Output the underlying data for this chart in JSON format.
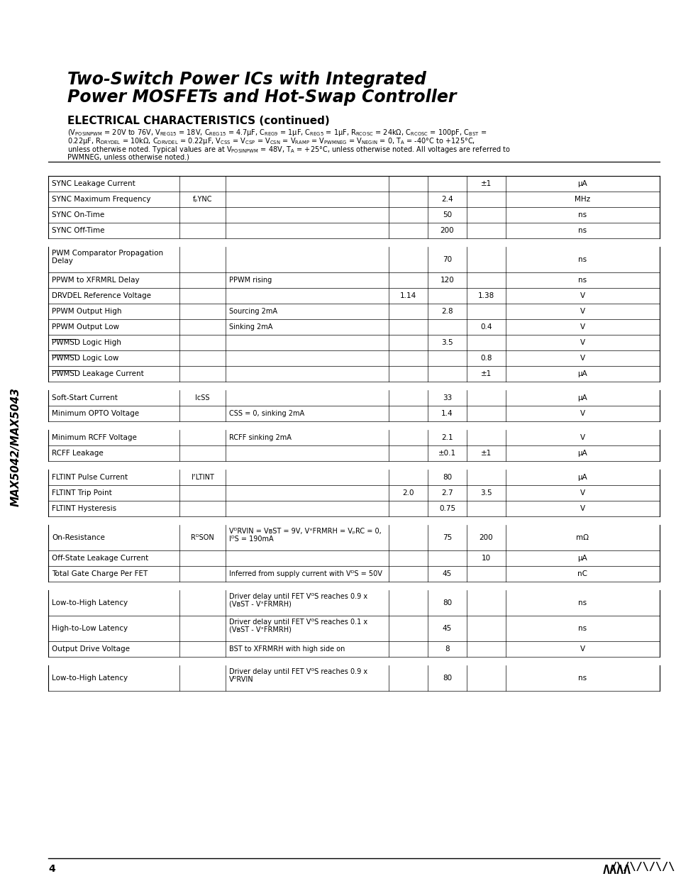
{
  "title_line1": "Two-Switch Power ICs with Integrated",
  "title_line2": "Power MOSFETs and Hot-Swap Controller",
  "section_title": "ELECTRICAL CHARACTERISTICS (continued)",
  "conditions_text": "(VₚOSINPWM = 20V to 76V, VᴾEG15 = 18V, CᴾEG15 = 4.7μF, CᴾEG9 = 1μF, CᴾEG5 = 1μF, RᴾCOSC = 24kΩ, CᴾCOSC = 100pF, CʙST = 0.22μF, RᴰᴾVDEL = 10kΩ, CᴰᴾVDEL = 0.22μF, VᴄSS = VᴄSP = VᴄSN = VᴾAMP = VₚWMNEG = VɴEGIN = 0, Tᴀ = -40°C to +125°C, unless otherwise noted. Typical values are at VₚOSINPWM = 48V, Tᴀ = +25°C, unless otherwise noted. All voltages are referred to PWMNEG, unless otherwise noted.)",
  "side_text": "MAX5042/MAX5043",
  "page_num": "4",
  "logo_text": "/\\/\\/\\/\\/\\",
  "bg_color": "#ffffff",
  "table_rows": [
    {
      "param": "SYNC Leakage Current",
      "symbol": "",
      "conditions": "",
      "min": "",
      "typ": "",
      "max": "±1",
      "units": "μA",
      "group": "sync",
      "shade": false
    },
    {
      "param": "SYNC Maximum Frequency",
      "symbol": "fₚYNC",
      "conditions": "",
      "min": "",
      "typ": "2.4",
      "max": "",
      "units": "MHz",
      "group": "sync",
      "shade": false
    },
    {
      "param": "SYNC On-Time",
      "symbol": "",
      "conditions": "",
      "min": "",
      "typ": "50",
      "max": "",
      "units": "ns",
      "group": "sync",
      "shade": false
    },
    {
      "param": "SYNC Off-Time",
      "symbol": "",
      "conditions": "",
      "min": "",
      "typ": "200",
      "max": "",
      "units": "ns",
      "group": "sync",
      "shade": false
    },
    {
      "param": "",
      "symbol": "",
      "conditions": "",
      "min": "",
      "typ": "",
      "max": "",
      "units": "",
      "group": "spacer",
      "shade": false
    },
    {
      "param": "PWM Comparator Propagation\nDelay",
      "symbol": "",
      "conditions": "",
      "min": "",
      "typ": "70",
      "max": "",
      "units": "ns",
      "group": "pwm",
      "shade": false
    },
    {
      "param": "PPWM to XFRMRL Delay",
      "symbol": "",
      "conditions": "PPWM rising",
      "min": "",
      "typ": "120",
      "max": "",
      "units": "ns",
      "group": "pwm",
      "shade": false
    },
    {
      "param": "DRVDEL Reference Voltage",
      "symbol": "",
      "conditions": "",
      "min": "1.14",
      "typ": "",
      "max": "1.38",
      "units": "V",
      "group": "pwm",
      "shade": false
    },
    {
      "param": "PPWM Output High",
      "symbol": "",
      "conditions": "Sourcing 2mA",
      "min": "",
      "typ": "2.8",
      "max": "",
      "units": "V",
      "group": "pwm",
      "shade": false
    },
    {
      "param": "PPWM Output Low",
      "symbol": "",
      "conditions": "Sinking 2mA",
      "min": "",
      "typ": "",
      "max": "0.4",
      "units": "V",
      "group": "pwm",
      "shade": false
    },
    {
      "param": "PWMSD Logic High",
      "symbol": "",
      "conditions": "",
      "min": "",
      "typ": "3.5",
      "max": "",
      "units": "V",
      "group": "pwm",
      "shade": false,
      "overline": "PWMSD"
    },
    {
      "param": "PWMSD Logic Low",
      "symbol": "",
      "conditions": "",
      "min": "",
      "typ": "",
      "max": "0.8",
      "units": "V",
      "group": "pwm",
      "shade": false,
      "overline": "PWMSD"
    },
    {
      "param": "PWMSD Leakage Current",
      "symbol": "",
      "conditions": "",
      "min": "",
      "typ": "",
      "max": "±1",
      "units": "μA",
      "group": "pwm",
      "shade": false,
      "overline": "PWMSD"
    },
    {
      "param": "",
      "symbol": "",
      "conditions": "",
      "min": "",
      "typ": "",
      "max": "",
      "units": "",
      "group": "spacer2",
      "shade": false
    },
    {
      "param": "Soft-Start Current",
      "symbol": "IᴄSS",
      "conditions": "",
      "min": "",
      "typ": "33",
      "max": "",
      "units": "μA",
      "group": "ss",
      "shade": false
    },
    {
      "param": "Minimum OPTO Voltage",
      "symbol": "",
      "conditions": "CSS = 0, sinking 2mA",
      "min": "",
      "typ": "1.4",
      "max": "",
      "units": "V",
      "group": "ss",
      "shade": false
    },
    {
      "param": "",
      "symbol": "",
      "conditions": "",
      "min": "",
      "typ": "",
      "max": "",
      "units": "",
      "group": "spacer3",
      "shade": false
    },
    {
      "param": "Minimum RCFF Voltage",
      "symbol": "",
      "conditions": "RCFF sinking 2mA",
      "min": "",
      "typ": "2.1",
      "max": "",
      "units": "V",
      "group": "rcff",
      "shade": false
    },
    {
      "param": "RCFF Leakage",
      "symbol": "",
      "conditions": "",
      "min": "",
      "typ": "±0.1",
      "max": "±1",
      "units": "μA",
      "group": "rcff",
      "shade": false
    },
    {
      "param": "",
      "symbol": "",
      "conditions": "",
      "min": "",
      "typ": "",
      "max": "",
      "units": "",
      "group": "spacer4",
      "shade": false
    },
    {
      "param": "FLTINT Pulse Current",
      "symbol": "IᶠLTINT",
      "conditions": "",
      "min": "",
      "typ": "80",
      "max": "",
      "units": "μA",
      "group": "flt",
      "shade": false
    },
    {
      "param": "FLTINT Trip Point",
      "symbol": "",
      "conditions": "",
      "min": "2.0",
      "typ": "2.7",
      "max": "3.5",
      "units": "V",
      "group": "flt",
      "shade": false
    },
    {
      "param": "FLTINT Hysteresis",
      "symbol": "",
      "conditions": "",
      "min": "",
      "typ": "0.75",
      "max": "",
      "units": "V",
      "group": "flt",
      "shade": false
    },
    {
      "param": "",
      "symbol": "",
      "conditions": "",
      "min": "",
      "typ": "",
      "max": "",
      "units": "",
      "group": "spacer5",
      "shade": false
    },
    {
      "param": "On-Resistance",
      "symbol": "RᴰSON",
      "conditions": "VᴰRVIN = VʙST = 9V, VˣFRMRH = VₚRC = 0,\nIᴰS = 190mA",
      "min": "",
      "typ": "75",
      "max": "200",
      "units": "mΩ",
      "group": "mosfet",
      "shade": false
    },
    {
      "param": "Off-State Leakage Current",
      "symbol": "",
      "conditions": "",
      "min": "",
      "typ": "",
      "max": "10",
      "units": "μA",
      "group": "mosfet",
      "shade": false
    },
    {
      "param": "Total Gate Charge Per FET",
      "symbol": "",
      "conditions": "Inferred from supply current with VᴰS = 50V",
      "min": "",
      "typ": "45",
      "max": "",
      "units": "nC",
      "group": "mosfet",
      "shade": false
    },
    {
      "param": "",
      "symbol": "",
      "conditions": "",
      "min": "",
      "typ": "",
      "max": "",
      "units": "",
      "group": "spacer6",
      "shade": false
    },
    {
      "param": "Low-to-High Latency",
      "symbol": "",
      "conditions": "Driver delay until FET VᴳS reaches 0.9 x\n(VʙST - VˣFRMRH)",
      "min": "",
      "typ": "80",
      "max": "",
      "units": "ns",
      "group": "driver_h",
      "shade": false
    },
    {
      "param": "High-to-Low Latency",
      "symbol": "",
      "conditions": "Driver delay until FET VᴳS reaches 0.1 x\n(VʙST - VˣFRMRH)",
      "min": "",
      "typ": "45",
      "max": "",
      "units": "ns",
      "group": "driver_h",
      "shade": false
    },
    {
      "param": "Output Drive Voltage",
      "symbol": "",
      "conditions": "BST to XFRMRH with high side on",
      "min": "",
      "typ": "8",
      "max": "",
      "units": "V",
      "group": "driver_h",
      "shade": false
    },
    {
      "param": "",
      "symbol": "",
      "conditions": "",
      "min": "",
      "typ": "",
      "max": "",
      "units": "",
      "group": "spacer7",
      "shade": false
    },
    {
      "param": "Low-to-High Latency",
      "symbol": "",
      "conditions": "Driver delay until FET VᴳS reaches 0.9 x\nVᴰRVIN",
      "min": "",
      "typ": "80",
      "max": "",
      "units": "ns",
      "group": "driver_l",
      "shade": false
    }
  ]
}
